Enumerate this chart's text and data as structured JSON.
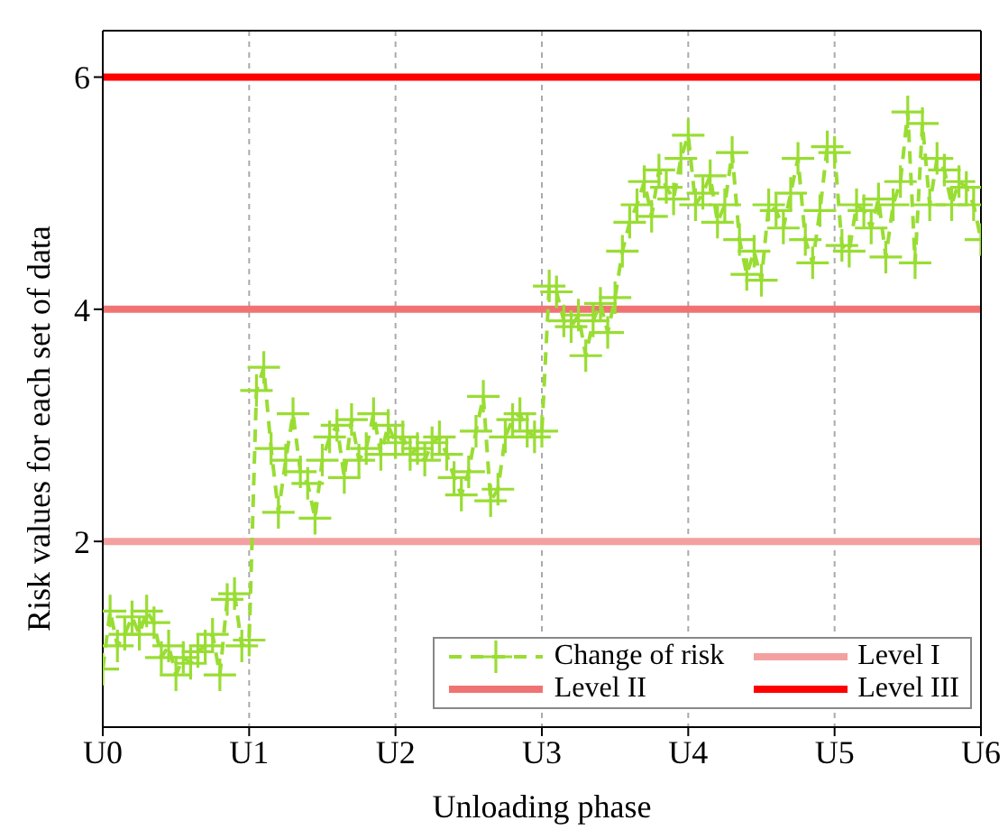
{
  "chart_data": {
    "type": "line",
    "xlabel": "Unloading phase",
    "ylabel": "Risk values for each set of data",
    "categories": [
      "U0",
      null,
      null,
      null,
      null,
      null,
      null,
      null,
      null,
      null,
      null,
      null,
      null,
      null,
      null,
      null,
      null,
      null,
      null,
      null,
      "U1",
      null,
      null,
      null,
      null,
      null,
      null,
      null,
      null,
      null,
      null,
      null,
      null,
      null,
      null,
      null,
      null,
      null,
      null,
      null,
      "U2",
      null,
      null,
      null,
      null,
      null,
      null,
      null,
      null,
      null,
      null,
      null,
      null,
      null,
      null,
      null,
      null,
      null,
      null,
      null,
      "U3",
      null,
      null,
      null,
      null,
      null,
      null,
      null,
      null,
      null,
      null,
      null,
      null,
      null,
      null,
      null,
      null,
      null,
      null,
      null,
      "U4",
      null,
      null,
      null,
      null,
      null,
      null,
      null,
      null,
      null,
      null,
      null,
      null,
      null,
      null,
      null,
      null,
      null,
      null,
      null,
      "U5",
      null,
      null,
      null,
      null,
      null,
      null,
      null,
      null,
      null,
      null,
      null,
      null,
      null,
      null,
      null,
      null,
      null,
      null,
      null,
      "U6"
    ],
    "series": [
      {
        "name": "Change of risk",
        "color": "#99dd33",
        "values": [
          0.9,
          1.4,
          1.1,
          1.2,
          1.35,
          1.2,
          1.4,
          1.3,
          1.0,
          1.1,
          0.85,
          1.0,
          0.95,
          1.05,
          1.1,
          1.2,
          0.85,
          1.5,
          1.55,
          1.1,
          1.15,
          3.3,
          3.5,
          2.8,
          2.25,
          2.7,
          3.1,
          2.6,
          2.5,
          2.2,
          2.7,
          2.9,
          3.0,
          2.55,
          3.05,
          2.7,
          2.8,
          3.1,
          2.75,
          3.0,
          2.85,
          2.9,
          2.75,
          2.8,
          2.7,
          2.85,
          2.9,
          2.75,
          2.55,
          2.4,
          2.6,
          2.95,
          3.25,
          2.35,
          2.45,
          2.9,
          3.05,
          3.1,
          2.95,
          2.9,
          2.95,
          4.2,
          4.15,
          3.9,
          3.85,
          3.95,
          3.6,
          3.9,
          4.05,
          3.8,
          4.1,
          4.5,
          4.75,
          4.9,
          5.1,
          4.8,
          5.2,
          5.05,
          4.95,
          5.3,
          5.5,
          4.9,
          5.0,
          5.15,
          4.75,
          4.9,
          5.35,
          4.6,
          4.3,
          4.5,
          4.25,
          4.9,
          4.85,
          4.7,
          5.0,
          5.3,
          4.6,
          4.4,
          4.85,
          5.4,
          5.35,
          4.55,
          4.5,
          4.9,
          4.85,
          4.7,
          4.95,
          4.45,
          4.9,
          5.1,
          5.7,
          4.4,
          5.6,
          4.9,
          5.3,
          5.2,
          4.9,
          5.1,
          5.05,
          4.9,
          4.6
        ]
      }
    ],
    "marker": "cross",
    "line_style": "dashed",
    "ylim": [
      0.4,
      6.4
    ],
    "yticks": [
      2,
      4,
      6
    ],
    "grid": "x",
    "ref_lines": [
      {
        "axis": "y",
        "value": 2,
        "label": "Level I",
        "color": "#f4a0a0"
      },
      {
        "axis": "y",
        "value": 4,
        "label": "Level II",
        "color": "#f07373"
      },
      {
        "axis": "y",
        "value": 6,
        "label": "Level III",
        "color": "#ff0000"
      }
    ],
    "legend": "bottom right"
  }
}
